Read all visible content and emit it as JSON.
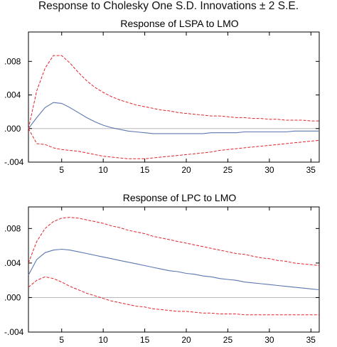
{
  "title": "Response to Cholesky One S.D. Innovations ± 2 S.E.",
  "colors": {
    "response": "#5b77b1",
    "bands": "#e0242a",
    "zero_line": "#b8b8b8",
    "frame": "#000000"
  },
  "chart_data": [
    {
      "type": "line",
      "title": "Response of LSPA to LMO",
      "x": [
        1,
        2,
        3,
        4,
        5,
        6,
        7,
        8,
        9,
        10,
        11,
        12,
        13,
        14,
        15,
        16,
        17,
        18,
        19,
        20,
        21,
        22,
        23,
        24,
        25,
        26,
        27,
        28,
        29,
        30,
        31,
        32,
        33,
        34,
        35,
        36
      ],
      "xlim": [
        1,
        36
      ],
      "ylim": [
        -0.004,
        0.0115
      ],
      "x_ticks": [
        "5",
        "10",
        "15",
        "20",
        "25",
        "30",
        "35"
      ],
      "y_ticks": [
        ".008",
        ".004",
        ".000",
        "-.004"
      ],
      "x_tick_values": [
        5,
        10,
        15,
        20,
        25,
        30,
        35
      ],
      "y_tick_values": [
        0.008,
        0.004,
        0.0,
        -0.004
      ],
      "series": [
        {
          "role": "response",
          "values": [
            0.0,
            0.0013,
            0.0025,
            0.0031,
            0.003,
            0.0025,
            0.0019,
            0.0013,
            0.0008,
            0.0004,
            0.0001,
            -0.0001,
            -0.0003,
            -0.0004,
            -0.0005,
            -0.0006,
            -0.0006,
            -0.0006,
            -0.0006,
            -0.0006,
            -0.0006,
            -0.0006,
            -0.0005,
            -0.0005,
            -0.0005,
            -0.0005,
            -0.0004,
            -0.0004,
            -0.0004,
            -0.0004,
            -0.0004,
            -0.0004,
            -0.0003,
            -0.0003,
            -0.0003,
            -0.0003
          ]
        },
        {
          "role": "upper",
          "values": [
            0.0,
            0.0045,
            0.0072,
            0.0087,
            0.0087,
            0.0078,
            0.0067,
            0.0057,
            0.0049,
            0.0043,
            0.0038,
            0.0034,
            0.0031,
            0.0028,
            0.0026,
            0.0024,
            0.0022,
            0.0021,
            0.0019,
            0.0018,
            0.0017,
            0.0016,
            0.0015,
            0.0015,
            0.0014,
            0.0013,
            0.0013,
            0.0012,
            0.0012,
            0.0011,
            0.0011,
            0.001,
            0.001,
            0.001,
            0.0009,
            0.0009
          ]
        },
        {
          "role": "lower",
          "values": [
            0.0,
            -0.0018,
            -0.0019,
            -0.0023,
            -0.0025,
            -0.0026,
            -0.0027,
            -0.0029,
            -0.0031,
            -0.0033,
            -0.0034,
            -0.0035,
            -0.0036,
            -0.0036,
            -0.0036,
            -0.0035,
            -0.0034,
            -0.0033,
            -0.0032,
            -0.0031,
            -0.003,
            -0.0029,
            -0.0028,
            -0.0026,
            -0.0025,
            -0.0024,
            -0.0023,
            -0.0022,
            -0.0021,
            -0.002,
            -0.0019,
            -0.0018,
            -0.0017,
            -0.0016,
            -0.0015,
            -0.0014
          ]
        }
      ]
    },
    {
      "type": "line",
      "title": "Response of LPC to LMO",
      "x": [
        1,
        2,
        3,
        4,
        5,
        6,
        7,
        8,
        9,
        10,
        11,
        12,
        13,
        14,
        15,
        16,
        17,
        18,
        19,
        20,
        21,
        22,
        23,
        24,
        25,
        26,
        27,
        28,
        29,
        30,
        31,
        32,
        33,
        34,
        35,
        36
      ],
      "xlim": [
        1,
        36
      ],
      "ylim": [
        -0.004,
        0.0105
      ],
      "x_ticks": [
        "5",
        "10",
        "15",
        "20",
        "25",
        "30",
        "35"
      ],
      "y_ticks": [
        ".008",
        ".004",
        ".000",
        "-.004"
      ],
      "x_tick_values": [
        5,
        10,
        15,
        20,
        25,
        30,
        35
      ],
      "y_tick_values": [
        0.008,
        0.004,
        0.0,
        -0.004
      ],
      "series": [
        {
          "role": "response",
          "values": [
            0.0026,
            0.0044,
            0.0052,
            0.0055,
            0.0056,
            0.0055,
            0.0053,
            0.0051,
            0.0049,
            0.0047,
            0.0045,
            0.0043,
            0.0041,
            0.0039,
            0.0037,
            0.0035,
            0.0033,
            0.0031,
            0.003,
            0.0028,
            0.0027,
            0.0025,
            0.0024,
            0.0022,
            0.0021,
            0.002,
            0.0018,
            0.0017,
            0.0016,
            0.0015,
            0.0014,
            0.0013,
            0.0012,
            0.0011,
            0.001,
            0.0009
          ]
        },
        {
          "role": "upper",
          "values": [
            0.004,
            0.0065,
            0.008,
            0.0088,
            0.0092,
            0.0093,
            0.0092,
            0.009,
            0.0088,
            0.0086,
            0.0083,
            0.0081,
            0.0078,
            0.0076,
            0.0074,
            0.0071,
            0.0069,
            0.0067,
            0.0065,
            0.0063,
            0.0061,
            0.0059,
            0.0057,
            0.0055,
            0.0053,
            0.0051,
            0.005,
            0.0048,
            0.0046,
            0.0045,
            0.0043,
            0.0042,
            0.004,
            0.0039,
            0.0038,
            0.0037
          ]
        },
        {
          "role": "lower",
          "values": [
            0.0012,
            0.002,
            0.0024,
            0.0022,
            0.0018,
            0.0013,
            0.0009,
            0.0005,
            0.0002,
            -0.0001,
            -0.0004,
            -0.0006,
            -0.0008,
            -0.001,
            -0.0011,
            -0.0013,
            -0.0014,
            -0.0015,
            -0.0016,
            -0.0016,
            -0.0017,
            -0.0018,
            -0.0018,
            -0.0019,
            -0.0019,
            -0.0019,
            -0.002,
            -0.002,
            -0.002,
            -0.002,
            -0.002,
            -0.002,
            -0.002,
            -0.002,
            -0.002,
            -0.002
          ]
        }
      ]
    }
  ]
}
